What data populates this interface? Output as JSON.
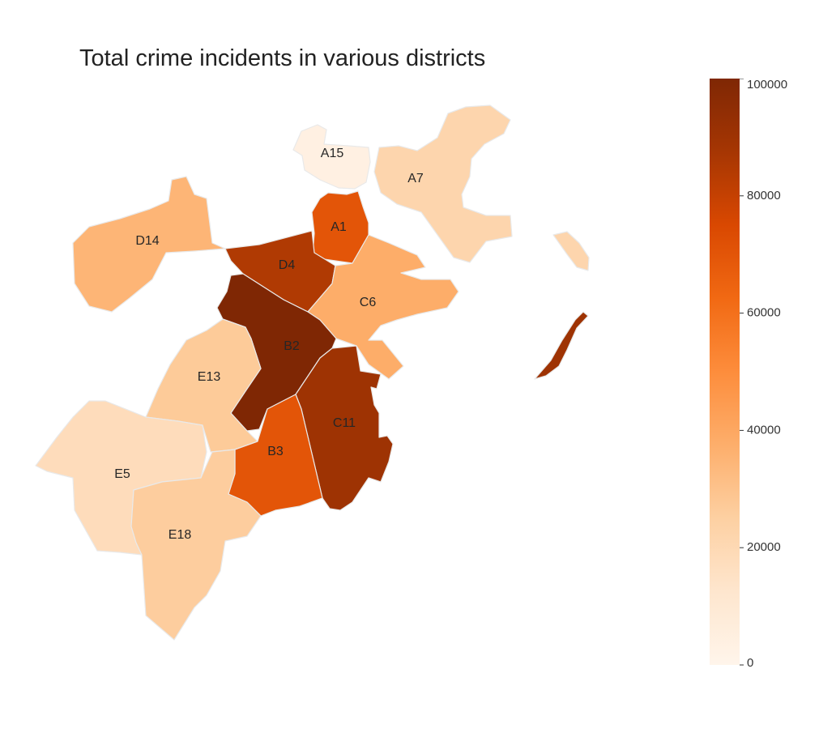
{
  "title": "Total crime incidents in various districts",
  "colorbar": {
    "min": 0,
    "max": 100000,
    "ticks": [
      {
        "value": 100000,
        "label": "100000"
      },
      {
        "value": 80000,
        "label": "80000"
      },
      {
        "value": 60000,
        "label": "60000"
      },
      {
        "value": 40000,
        "label": "40000"
      },
      {
        "value": 20000,
        "label": "20000"
      },
      {
        "value": 0,
        "label": "0"
      }
    ],
    "colormap": "Oranges",
    "stops": [
      "#fff5eb",
      "#fee6ce",
      "#fdd0a2",
      "#fdae6b",
      "#fd8d3c",
      "#f16913",
      "#d94801",
      "#a63603",
      "#7f2704"
    ]
  },
  "chart_data": {
    "type": "choropleth",
    "title": "Total crime incidents in various districts",
    "value_range": [
      0,
      100000
    ],
    "districts": [
      {
        "name": "A15",
        "value": 4000
      },
      {
        "name": "A7",
        "value": 22000
      },
      {
        "name": "A1",
        "value": 70000
      },
      {
        "name": "D14",
        "value": 35000
      },
      {
        "name": "D4",
        "value": 85000
      },
      {
        "name": "C6",
        "value": 38000
      },
      {
        "name": "B2",
        "value": 100000
      },
      {
        "name": "E13",
        "value": 27000
      },
      {
        "name": "C11",
        "value": 90000
      },
      {
        "name": "E5",
        "value": 18000
      },
      {
        "name": "B3",
        "value": 70000
      },
      {
        "name": "E18",
        "value": 26000
      }
    ]
  }
}
